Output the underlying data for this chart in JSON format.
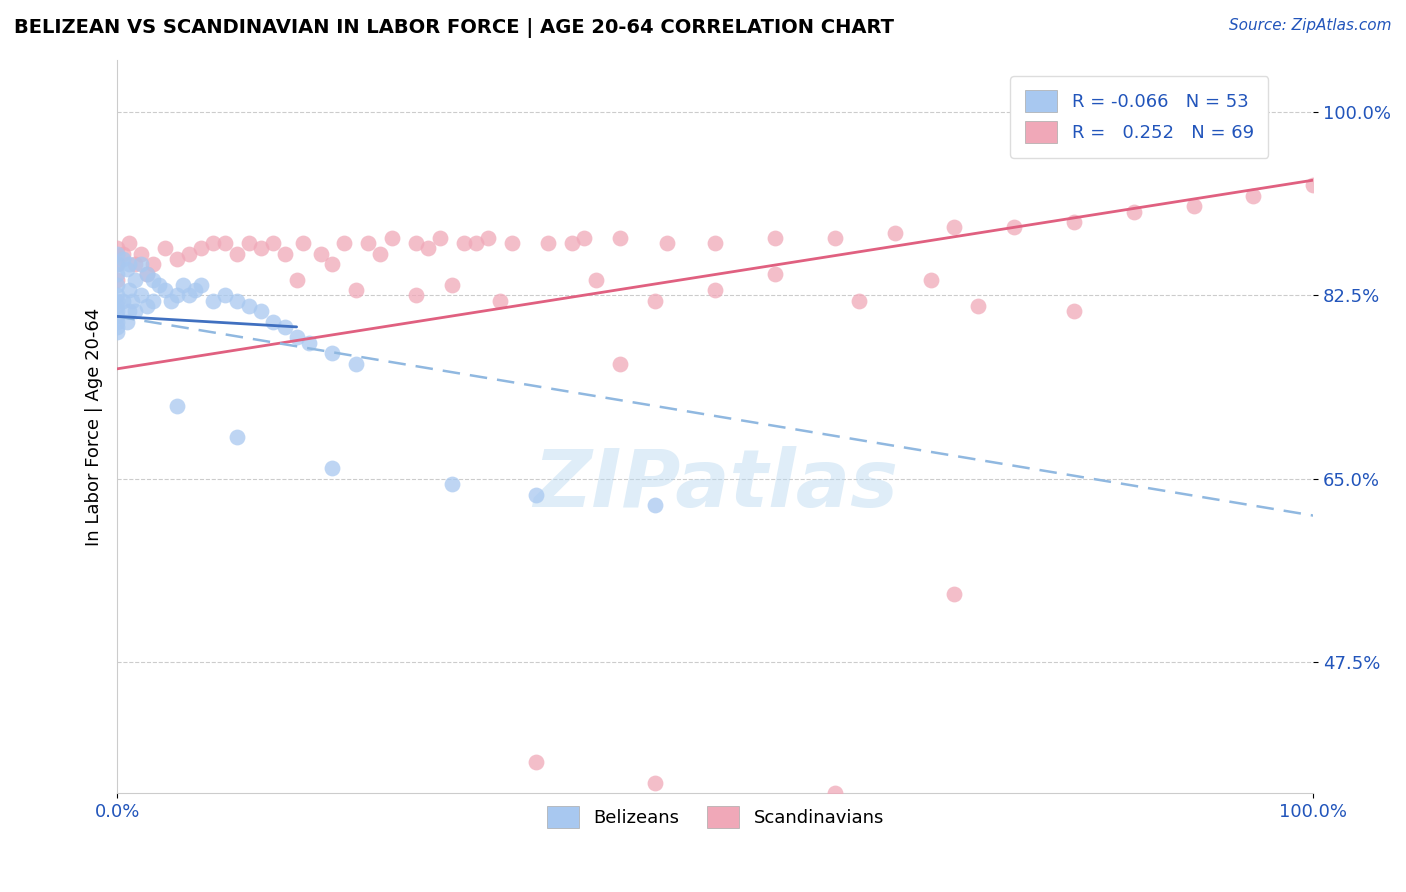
{
  "title": "BELIZEAN VS SCANDINAVIAN IN LABOR FORCE | AGE 20-64 CORRELATION CHART",
  "source_text": "Source: ZipAtlas.com",
  "ylabel": "In Labor Force | Age 20-64",
  "xlim": [
    0.0,
    1.0
  ],
  "ylim": [
    0.35,
    1.05
  ],
  "x_tick_labels": [
    "0.0%",
    "100.0%"
  ],
  "y_tick_labels": [
    "47.5%",
    "65.0%",
    "82.5%",
    "100.0%"
  ],
  "y_tick_values": [
    0.475,
    0.65,
    0.825,
    1.0
  ],
  "watermark": "ZIPatlas",
  "blue_color": "#a8c8f0",
  "pink_color": "#f0a8b8",
  "blue_line_color": "#4070c0",
  "blue_dash_color": "#90b8e0",
  "pink_line_color": "#e06080",
  "blue_scatter": {
    "x": [
      0.0,
      0.0,
      0.0,
      0.0,
      0.0,
      0.0,
      0.0,
      0.0,
      0.0,
      0.0,
      0.0,
      0.0,
      0.005,
      0.005,
      0.008,
      0.008,
      0.01,
      0.01,
      0.01,
      0.012,
      0.015,
      0.015,
      0.02,
      0.02,
      0.025,
      0.025,
      0.03,
      0.03,
      0.035,
      0.04,
      0.045,
      0.05,
      0.055,
      0.06,
      0.065,
      0.07,
      0.08,
      0.09,
      0.1,
      0.11,
      0.12,
      0.13,
      0.14,
      0.15,
      0.16,
      0.18,
      0.2,
      0.05,
      0.1,
      0.18,
      0.28,
      0.35,
      0.45
    ],
    "y": [
      0.865,
      0.855,
      0.845,
      0.835,
      0.825,
      0.82,
      0.815,
      0.81,
      0.805,
      0.8,
      0.795,
      0.79,
      0.86,
      0.82,
      0.85,
      0.8,
      0.855,
      0.83,
      0.81,
      0.82,
      0.84,
      0.81,
      0.855,
      0.825,
      0.845,
      0.815,
      0.84,
      0.82,
      0.835,
      0.83,
      0.82,
      0.825,
      0.835,
      0.825,
      0.83,
      0.835,
      0.82,
      0.825,
      0.82,
      0.815,
      0.81,
      0.8,
      0.795,
      0.785,
      0.78,
      0.77,
      0.76,
      0.72,
      0.69,
      0.66,
      0.645,
      0.635,
      0.625
    ]
  },
  "pink_scatter": {
    "x": [
      0.0,
      0.0,
      0.0,
      0.005,
      0.01,
      0.015,
      0.02,
      0.025,
      0.03,
      0.04,
      0.05,
      0.06,
      0.07,
      0.08,
      0.09,
      0.1,
      0.11,
      0.12,
      0.13,
      0.14,
      0.155,
      0.17,
      0.19,
      0.21,
      0.23,
      0.25,
      0.27,
      0.29,
      0.31,
      0.33,
      0.36,
      0.39,
      0.18,
      0.22,
      0.26,
      0.3,
      0.38,
      0.42,
      0.46,
      0.5,
      0.55,
      0.6,
      0.65,
      0.7,
      0.75,
      0.8,
      0.85,
      0.9,
      0.95,
      1.0,
      0.42,
      0.7,
      0.25,
      0.45,
      0.72,
      0.2,
      0.32,
      0.5,
      0.62,
      0.8,
      0.15,
      0.28,
      0.4,
      0.55,
      0.68,
      0.35,
      0.45,
      0.6,
      0.85
    ],
    "y": [
      0.87,
      0.855,
      0.84,
      0.865,
      0.875,
      0.855,
      0.865,
      0.845,
      0.855,
      0.87,
      0.86,
      0.865,
      0.87,
      0.875,
      0.875,
      0.865,
      0.875,
      0.87,
      0.875,
      0.865,
      0.875,
      0.865,
      0.875,
      0.875,
      0.88,
      0.875,
      0.88,
      0.875,
      0.88,
      0.875,
      0.875,
      0.88,
      0.855,
      0.865,
      0.87,
      0.875,
      0.875,
      0.88,
      0.875,
      0.875,
      0.88,
      0.88,
      0.885,
      0.89,
      0.89,
      0.895,
      0.905,
      0.91,
      0.92,
      0.93,
      0.76,
      0.54,
      0.825,
      0.82,
      0.815,
      0.83,
      0.82,
      0.83,
      0.82,
      0.81,
      0.84,
      0.835,
      0.84,
      0.845,
      0.84,
      0.38,
      0.36,
      0.35,
      0.97
    ]
  },
  "figsize": [
    14.06,
    8.92
  ],
  "dpi": 100
}
